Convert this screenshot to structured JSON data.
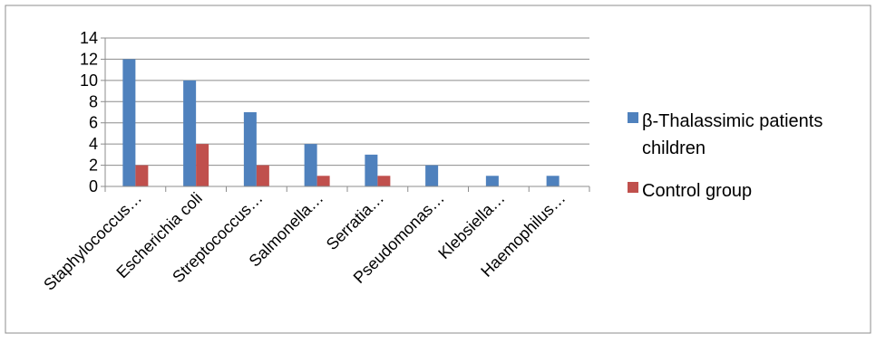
{
  "chart_data": {
    "type": "bar",
    "title": "",
    "xlabel": "",
    "ylabel": "",
    "categories": [
      "Staphylococcus…",
      "Escherichia coli",
      "Streptococcus…",
      "Salmonella…",
      "Serratia…",
      "Pseudomonas…",
      "Klebsiella…",
      "Haemophilus…"
    ],
    "series": [
      {
        "name": "β-Thalassimic patients children",
        "legend_lines": [
          "β-Thalassimic patients",
          "children"
        ],
        "values": [
          12,
          10,
          7,
          4,
          3,
          2,
          1,
          1
        ],
        "color": "#4F81BD"
      },
      {
        "name": "Control group",
        "legend_lines": [
          "Control group"
        ],
        "values": [
          2,
          4,
          2,
          1,
          1,
          0,
          0,
          0
        ],
        "color": "#C0504D"
      }
    ],
    "ylim": [
      0,
      14
    ],
    "yticks": [
      0,
      2,
      4,
      6,
      8,
      10,
      12,
      14
    ],
    "grid": true,
    "legend_position": "right"
  }
}
